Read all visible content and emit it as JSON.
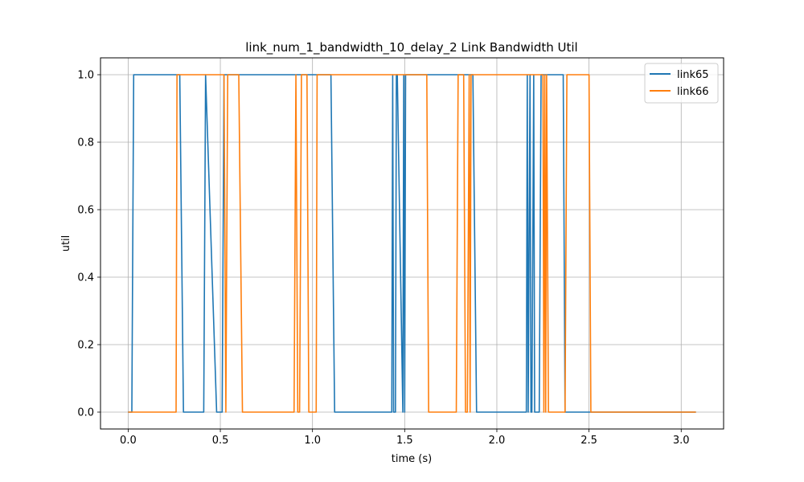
{
  "chart_data": {
    "type": "line",
    "title": "link_num_1_bandwidth_10_delay_2 Link Bandwidth Util",
    "xlabel": "time (s)",
    "ylabel": "util",
    "xlim": [
      -0.15,
      3.23
    ],
    "ylim": [
      -0.05,
      1.05
    ],
    "xticks": [
      0.0,
      0.5,
      1.0,
      1.5,
      2.0,
      2.5,
      3.0
    ],
    "xtick_labels": [
      "0.0",
      "0.5",
      "1.0",
      "1.5",
      "2.0",
      "2.5",
      "3.0"
    ],
    "yticks": [
      0.0,
      0.2,
      0.4,
      0.6,
      0.8,
      1.0
    ],
    "ytick_labels": [
      "0.0",
      "0.2",
      "0.4",
      "0.6",
      "0.8",
      "1.0"
    ],
    "grid": true,
    "legend": "top-right",
    "series": [
      {
        "name": "link65",
        "color": "#1f77b4",
        "x": [
          0.0,
          0.02,
          0.03,
          0.28,
          0.3,
          0.41,
          0.42,
          0.48,
          0.5,
          0.51,
          0.52,
          0.53,
          0.54,
          1.1,
          1.12,
          1.43,
          1.435,
          1.44,
          1.45,
          1.455,
          1.46,
          1.49,
          1.495,
          1.5,
          1.505,
          1.87,
          1.89,
          2.16,
          2.165,
          2.17,
          2.18,
          2.185,
          2.19,
          2.2,
          2.205,
          2.21,
          2.23,
          2.24,
          2.25,
          2.36,
          2.37,
          2.38,
          2.5,
          3.08
        ],
        "y": [
          0,
          0,
          1,
          1,
          0,
          0,
          1,
          0,
          0,
          0,
          1,
          1,
          1,
          1,
          0,
          0,
          1,
          0,
          0,
          1,
          1,
          0,
          1,
          0,
          1,
          1,
          0,
          0,
          1,
          0,
          1,
          0,
          0,
          1,
          0,
          0,
          0,
          1,
          1,
          1,
          0,
          0,
          0,
          0
        ]
      },
      {
        "name": "link66",
        "color": "#ff7f0e",
        "x": [
          0.0,
          0.26,
          0.265,
          0.52,
          0.53,
          0.54,
          0.55,
          0.6,
          0.62,
          0.9,
          0.91,
          0.92,
          0.93,
          0.94,
          0.95,
          0.97,
          0.98,
          1.02,
          1.025,
          1.62,
          1.63,
          1.78,
          1.79,
          1.8,
          1.82,
          1.83,
          1.84,
          1.85,
          1.855,
          1.86,
          1.87,
          1.875,
          2.25,
          2.255,
          2.26,
          2.265,
          2.27,
          2.28,
          2.37,
          2.38,
          2.5,
          2.51,
          3.08
        ],
        "y": [
          0,
          0,
          1,
          1,
          0,
          1,
          1,
          1,
          0,
          0,
          1,
          0,
          0,
          1,
          1,
          1,
          0,
          0,
          1,
          1,
          0,
          0,
          1,
          1,
          1,
          0,
          0,
          1,
          0,
          1,
          1,
          1,
          1,
          0,
          1,
          0,
          1,
          0,
          0,
          1,
          1,
          0,
          0
        ]
      }
    ]
  }
}
